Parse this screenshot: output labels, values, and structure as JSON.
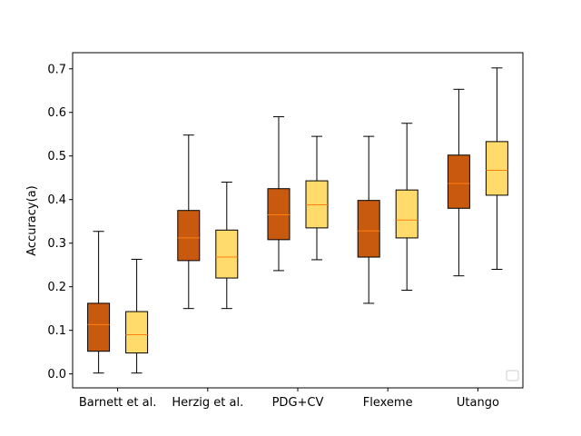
{
  "chart_data": {
    "type": "boxplot",
    "ylabel": "Accuracy(a)",
    "xlabel": "",
    "ylim": [
      -0.032,
      0.737
    ],
    "yticks": [
      0.0,
      0.1,
      0.2,
      0.3,
      0.4,
      0.5,
      0.6,
      0.7
    ],
    "ytick_labels": [
      "0.0",
      "0.1",
      "0.2",
      "0.3",
      "0.4",
      "0.5",
      "0.6",
      "0.7"
    ],
    "categories": [
      "Barnett et al.",
      "Herzig et al.",
      "PDG+CV",
      "Flexeme",
      "Utango"
    ],
    "grid": false,
    "legend": {
      "placement": "lower-right",
      "entries": []
    },
    "series": [
      {
        "color": "#c85a10",
        "boxes": [
          {
            "whislo": 0.002,
            "q1": 0.052,
            "med": 0.113,
            "q3": 0.162,
            "whishi": 0.327
          },
          {
            "whislo": 0.15,
            "q1": 0.26,
            "med": 0.312,
            "q3": 0.375,
            "whishi": 0.548
          },
          {
            "whislo": 0.237,
            "q1": 0.308,
            "med": 0.365,
            "q3": 0.425,
            "whishi": 0.59
          },
          {
            "whislo": 0.162,
            "q1": 0.268,
            "med": 0.328,
            "q3": 0.398,
            "whishi": 0.545
          },
          {
            "whislo": 0.225,
            "q1": 0.38,
            "med": 0.437,
            "q3": 0.502,
            "whishi": 0.653
          }
        ]
      },
      {
        "color": "#ffdb6b",
        "boxes": [
          {
            "whislo": 0.002,
            "q1": 0.048,
            "med": 0.09,
            "q3": 0.143,
            "whishi": 0.263
          },
          {
            "whislo": 0.15,
            "q1": 0.22,
            "med": 0.268,
            "q3": 0.33,
            "whishi": 0.44
          },
          {
            "whislo": 0.262,
            "q1": 0.335,
            "med": 0.388,
            "q3": 0.443,
            "whishi": 0.545
          },
          {
            "whislo": 0.192,
            "q1": 0.312,
            "med": 0.353,
            "q3": 0.422,
            "whishi": 0.575
          },
          {
            "whislo": 0.24,
            "q1": 0.41,
            "med": 0.467,
            "q3": 0.533,
            "whishi": 0.702
          }
        ]
      }
    ],
    "median_color": "#ff7f0e"
  }
}
